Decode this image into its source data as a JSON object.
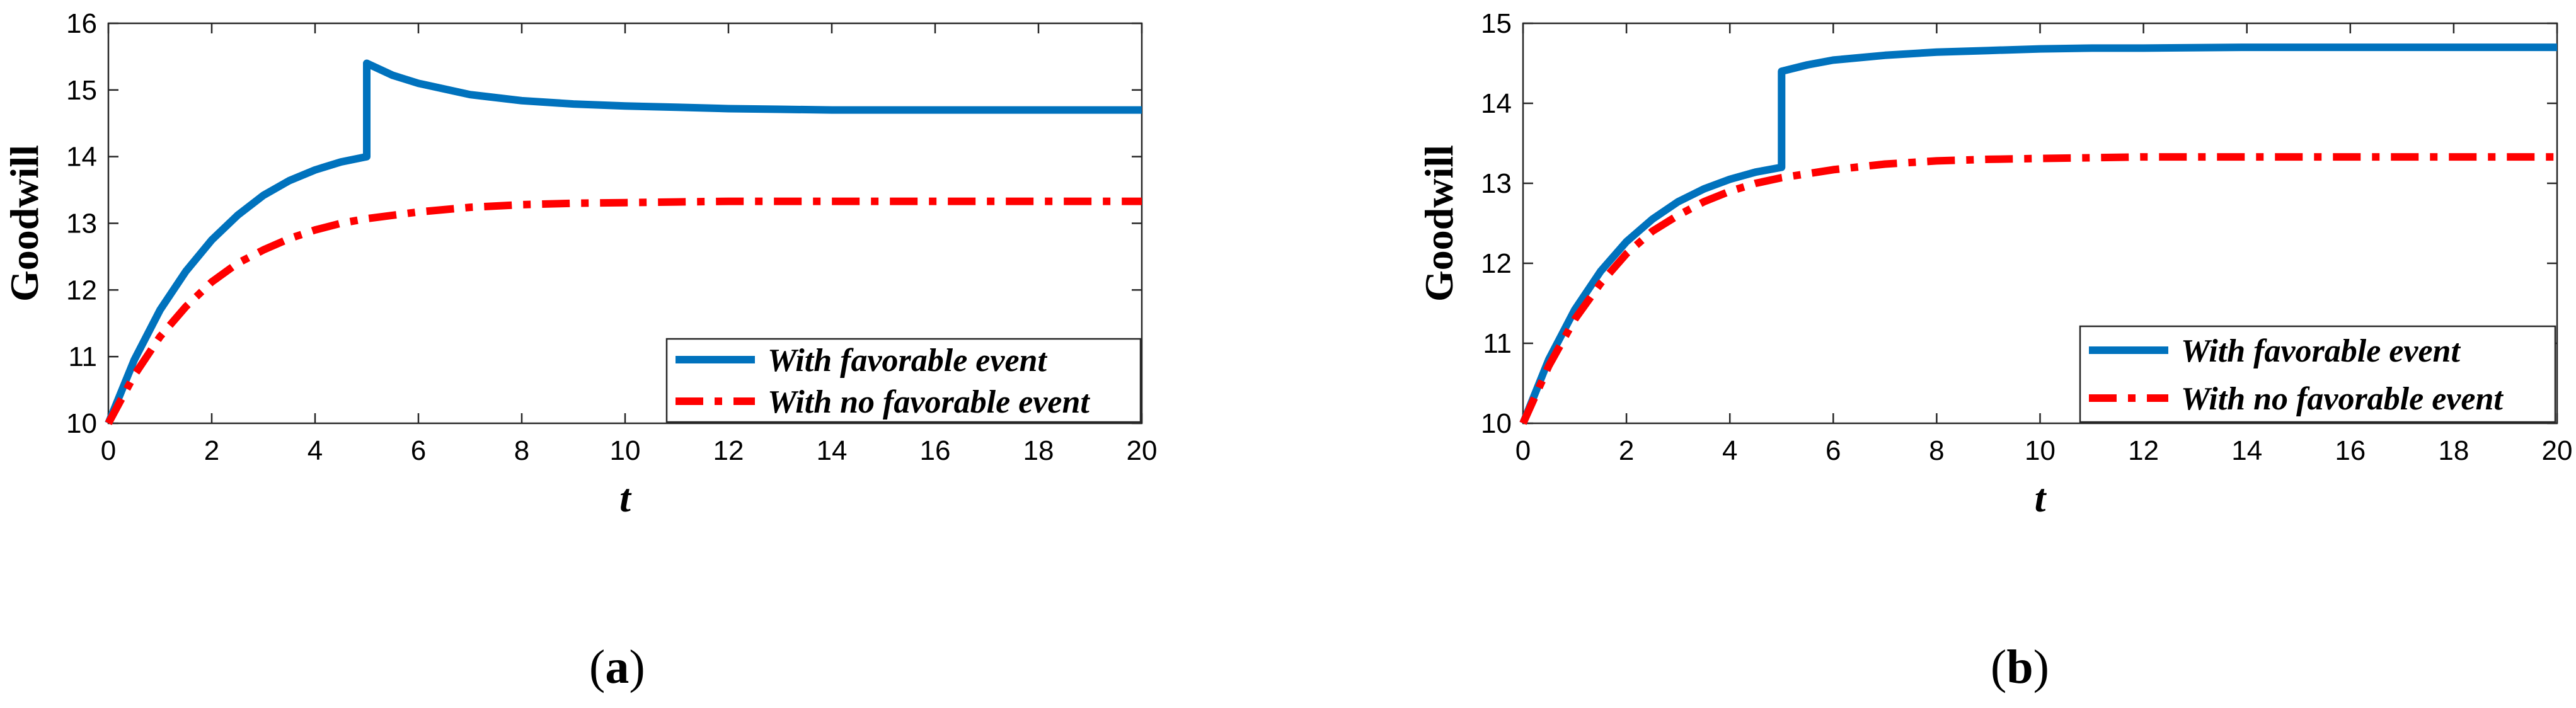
{
  "chart_data": [
    {
      "type": "line",
      "panel": "(a)",
      "caption_letter": "a",
      "xlabel": "t",
      "ylabel": "Goodwill",
      "xlim": [
        0,
        20
      ],
      "ylim": [
        10,
        16
      ],
      "xticks": [
        0,
        2,
        4,
        6,
        8,
        10,
        12,
        14,
        16,
        18,
        20
      ],
      "yticks": [
        10,
        11,
        12,
        13,
        14,
        15,
        16
      ],
      "legend_position": "bottom-right",
      "grid": false,
      "series": [
        {
          "name": "With favorable event",
          "color": "#0072BD",
          "style": "solid",
          "x": [
            0,
            0.5,
            1,
            1.5,
            2,
            2.5,
            3,
            3.5,
            4,
            4.5,
            5,
            5,
            5.5,
            6,
            7,
            8,
            9,
            10,
            11,
            12,
            13,
            14,
            15,
            16,
            18,
            20
          ],
          "y": [
            10,
            10.95,
            11.7,
            12.28,
            12.75,
            13.12,
            13.42,
            13.64,
            13.8,
            13.92,
            14.0,
            15.4,
            15.22,
            15.1,
            14.93,
            14.84,
            14.79,
            14.76,
            14.74,
            14.72,
            14.71,
            14.7,
            14.7,
            14.7,
            14.7,
            14.7
          ]
        },
        {
          "name": "With no favorable event",
          "color": "#FF0000",
          "style": "dashdot",
          "x": [
            0,
            0.5,
            1,
            1.5,
            2,
            2.5,
            3,
            3.5,
            4,
            4.5,
            5,
            6,
            7,
            8,
            9,
            10,
            11,
            12,
            14,
            16,
            18,
            20
          ],
          "y": [
            10,
            10.72,
            11.3,
            11.75,
            12.12,
            12.4,
            12.6,
            12.77,
            12.9,
            13.0,
            13.07,
            13.17,
            13.24,
            13.28,
            13.3,
            13.31,
            13.32,
            13.33,
            13.33,
            13.33,
            13.33,
            13.33
          ]
        }
      ]
    },
    {
      "type": "line",
      "panel": "(b)",
      "caption_letter": "b",
      "xlabel": "t",
      "ylabel": "Goodwill",
      "xlim": [
        0,
        20
      ],
      "ylim": [
        10,
        15
      ],
      "xticks": [
        0,
        2,
        4,
        6,
        8,
        10,
        12,
        14,
        16,
        18,
        20
      ],
      "yticks": [
        10,
        11,
        12,
        13,
        14,
        15
      ],
      "legend_position": "bottom-right",
      "grid": false,
      "series": [
        {
          "name": "With favorable event",
          "color": "#0072BD",
          "style": "solid",
          "x": [
            0,
            0.5,
            1,
            1.5,
            2,
            2.5,
            3,
            3.5,
            4,
            4.5,
            5,
            5,
            5.5,
            6,
            7,
            8,
            9,
            10,
            11,
            12,
            14,
            16,
            18,
            20
          ],
          "y": [
            10,
            10.8,
            11.42,
            11.9,
            12.27,
            12.55,
            12.77,
            12.93,
            13.05,
            13.14,
            13.2,
            14.4,
            14.48,
            14.54,
            14.6,
            14.64,
            14.66,
            14.68,
            14.69,
            14.69,
            14.7,
            14.7,
            14.7,
            14.7
          ]
        },
        {
          "name": "With no favorable event",
          "color": "#FF0000",
          "style": "dashdot",
          "x": [
            0,
            0.5,
            1,
            1.5,
            2,
            2.5,
            3,
            3.5,
            4,
            4.5,
            5,
            6,
            7,
            8,
            9,
            10,
            11,
            12,
            14,
            16,
            18,
            20
          ],
          "y": [
            10,
            10.72,
            11.3,
            11.75,
            12.12,
            12.4,
            12.6,
            12.77,
            12.9,
            13.0,
            13.07,
            13.17,
            13.24,
            13.28,
            13.3,
            13.31,
            13.32,
            13.33,
            13.33,
            13.33,
            13.33,
            13.33
          ]
        }
      ]
    }
  ]
}
